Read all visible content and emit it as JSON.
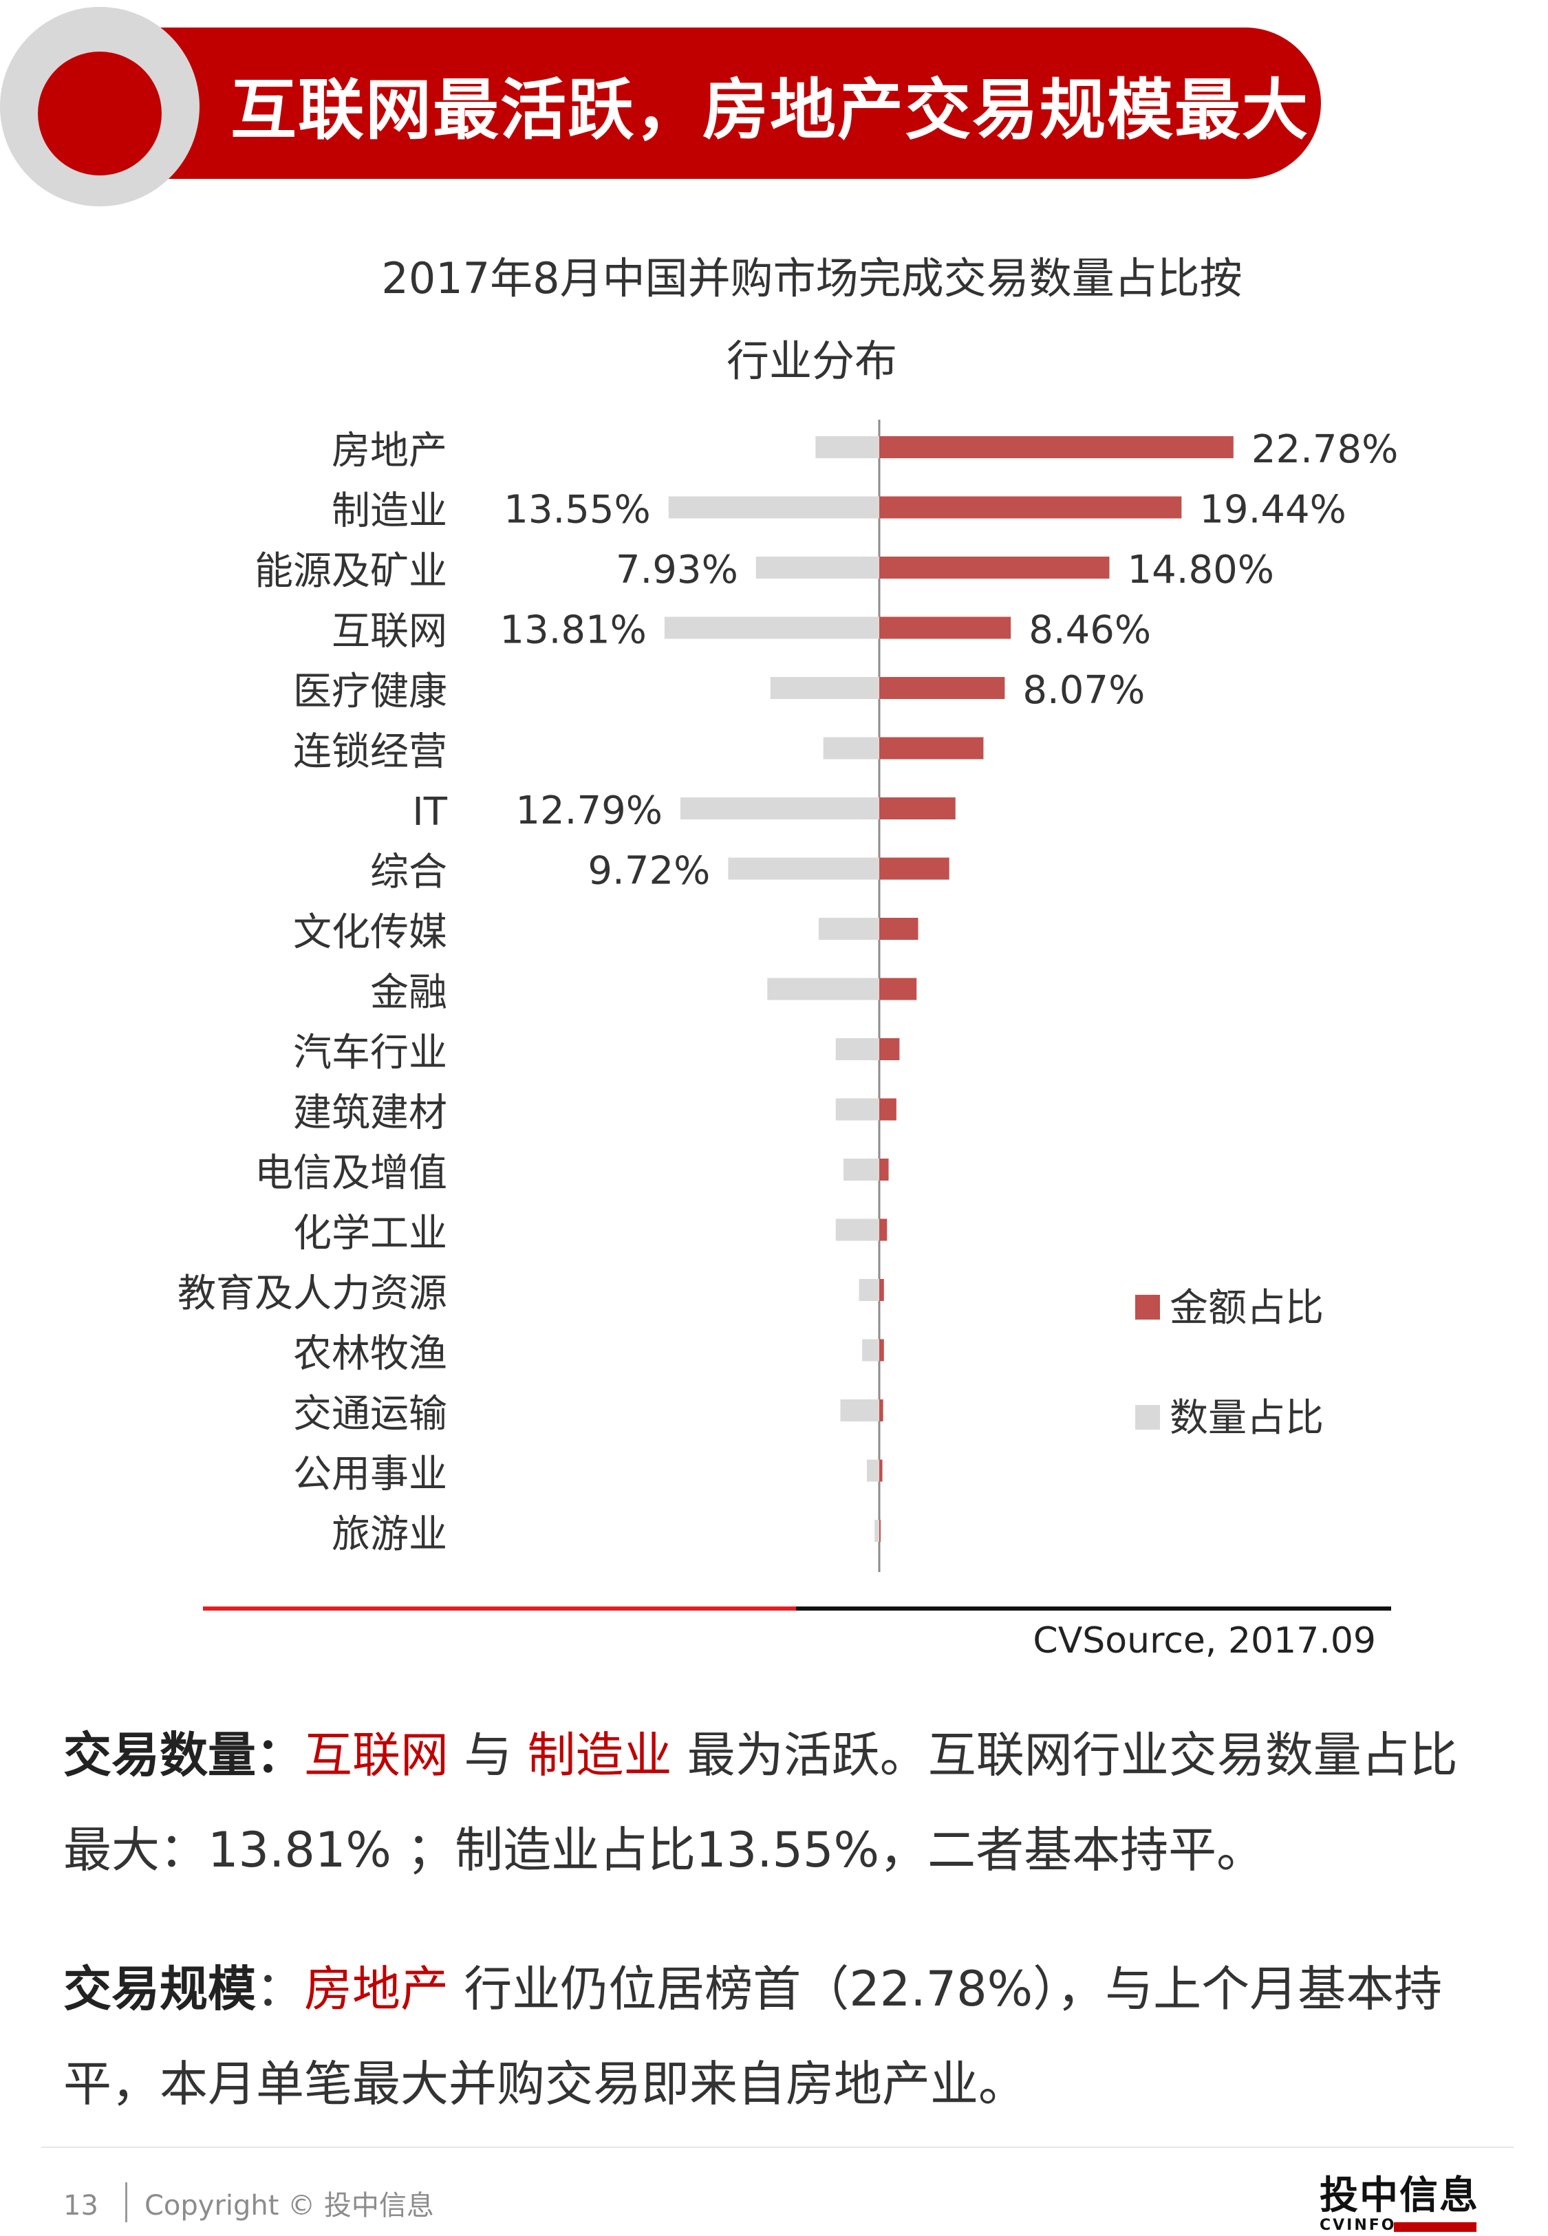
{
  "header": {
    "title": "互联网最活跃，房地产交易规模最大"
  },
  "chart_data": {
    "type": "bar",
    "title": "2017年8月中国并购市场完成交易数量占比按行业分布",
    "title_lines": [
      "2017年8月中国并购市场完成交易数量占比按",
      "行业分布"
    ],
    "orientation": "horizontal-diverging",
    "categories": [
      "房地产",
      "制造业",
      "能源及矿业",
      "互联网",
      "医疗健康",
      "连锁经营",
      "IT",
      "综合",
      "文化传媒",
      "金融",
      "汽车行业",
      "建筑建材",
      "电信及增值",
      "化学工业",
      "教育及人力资源",
      "农林牧渔",
      "交通运输",
      "公用事业",
      "旅游业"
    ],
    "series": [
      {
        "name": "金额占比",
        "color": "#c0504d",
        "direction": "right",
        "values": [
          22.78,
          19.44,
          14.8,
          8.46,
          8.07,
          6.7,
          4.9,
          4.5,
          2.5,
          2.4,
          1.3,
          1.1,
          0.6,
          0.5,
          0.3,
          0.3,
          0.25,
          0.2,
          0.05
        ],
        "labels": [
          "22.78%",
          "19.44%",
          "14.80%",
          "8.46%",
          "8.07%",
          "",
          "",
          "",
          "",
          "",
          "",
          "",
          "",
          "",
          "",
          "",
          "",
          "",
          ""
        ]
      },
      {
        "name": "数量占比",
        "color": "#d9d9d9",
        "direction": "left",
        "values": [
          4.1,
          13.55,
          7.93,
          13.81,
          7.0,
          3.6,
          12.79,
          9.72,
          3.9,
          7.2,
          2.8,
          2.8,
          2.3,
          2.8,
          1.3,
          1.1,
          2.5,
          0.8,
          0.3
        ],
        "labels": [
          "",
          "13.55%",
          "7.93%",
          "13.81%",
          "",
          "",
          "12.79%",
          "9.72%",
          "",
          "",
          "",
          "",
          "",
          "",
          "",
          "",
          "",
          "",
          ""
        ]
      }
    ],
    "legend": {
      "position": "right",
      "entries": [
        "金额占比",
        "数量占比"
      ]
    },
    "grid": false
  },
  "source": "CVSource, 2017.09",
  "para1": {
    "lead": "交易数量：",
    "hl1": "互联网",
    "t1": " 与 ",
    "hl2": "制造业",
    "t2": " 最为活跃。互联网行业交易数量占比最大：13.81% ；制造业占比13.55%，二者基本持平。"
  },
  "para2": {
    "lead": "交易规模",
    "t0": "：",
    "hl1": "房地产",
    "t1": " 行业仍位居榜首（22.78%），与上个月基本持平，本月单笔最大并购交易即来自房地产业。"
  },
  "footer": {
    "page": "13",
    "copyright": "Copyright © 投中信息",
    "logo_cn": "投中信息",
    "logo_en": "CVINFO"
  }
}
